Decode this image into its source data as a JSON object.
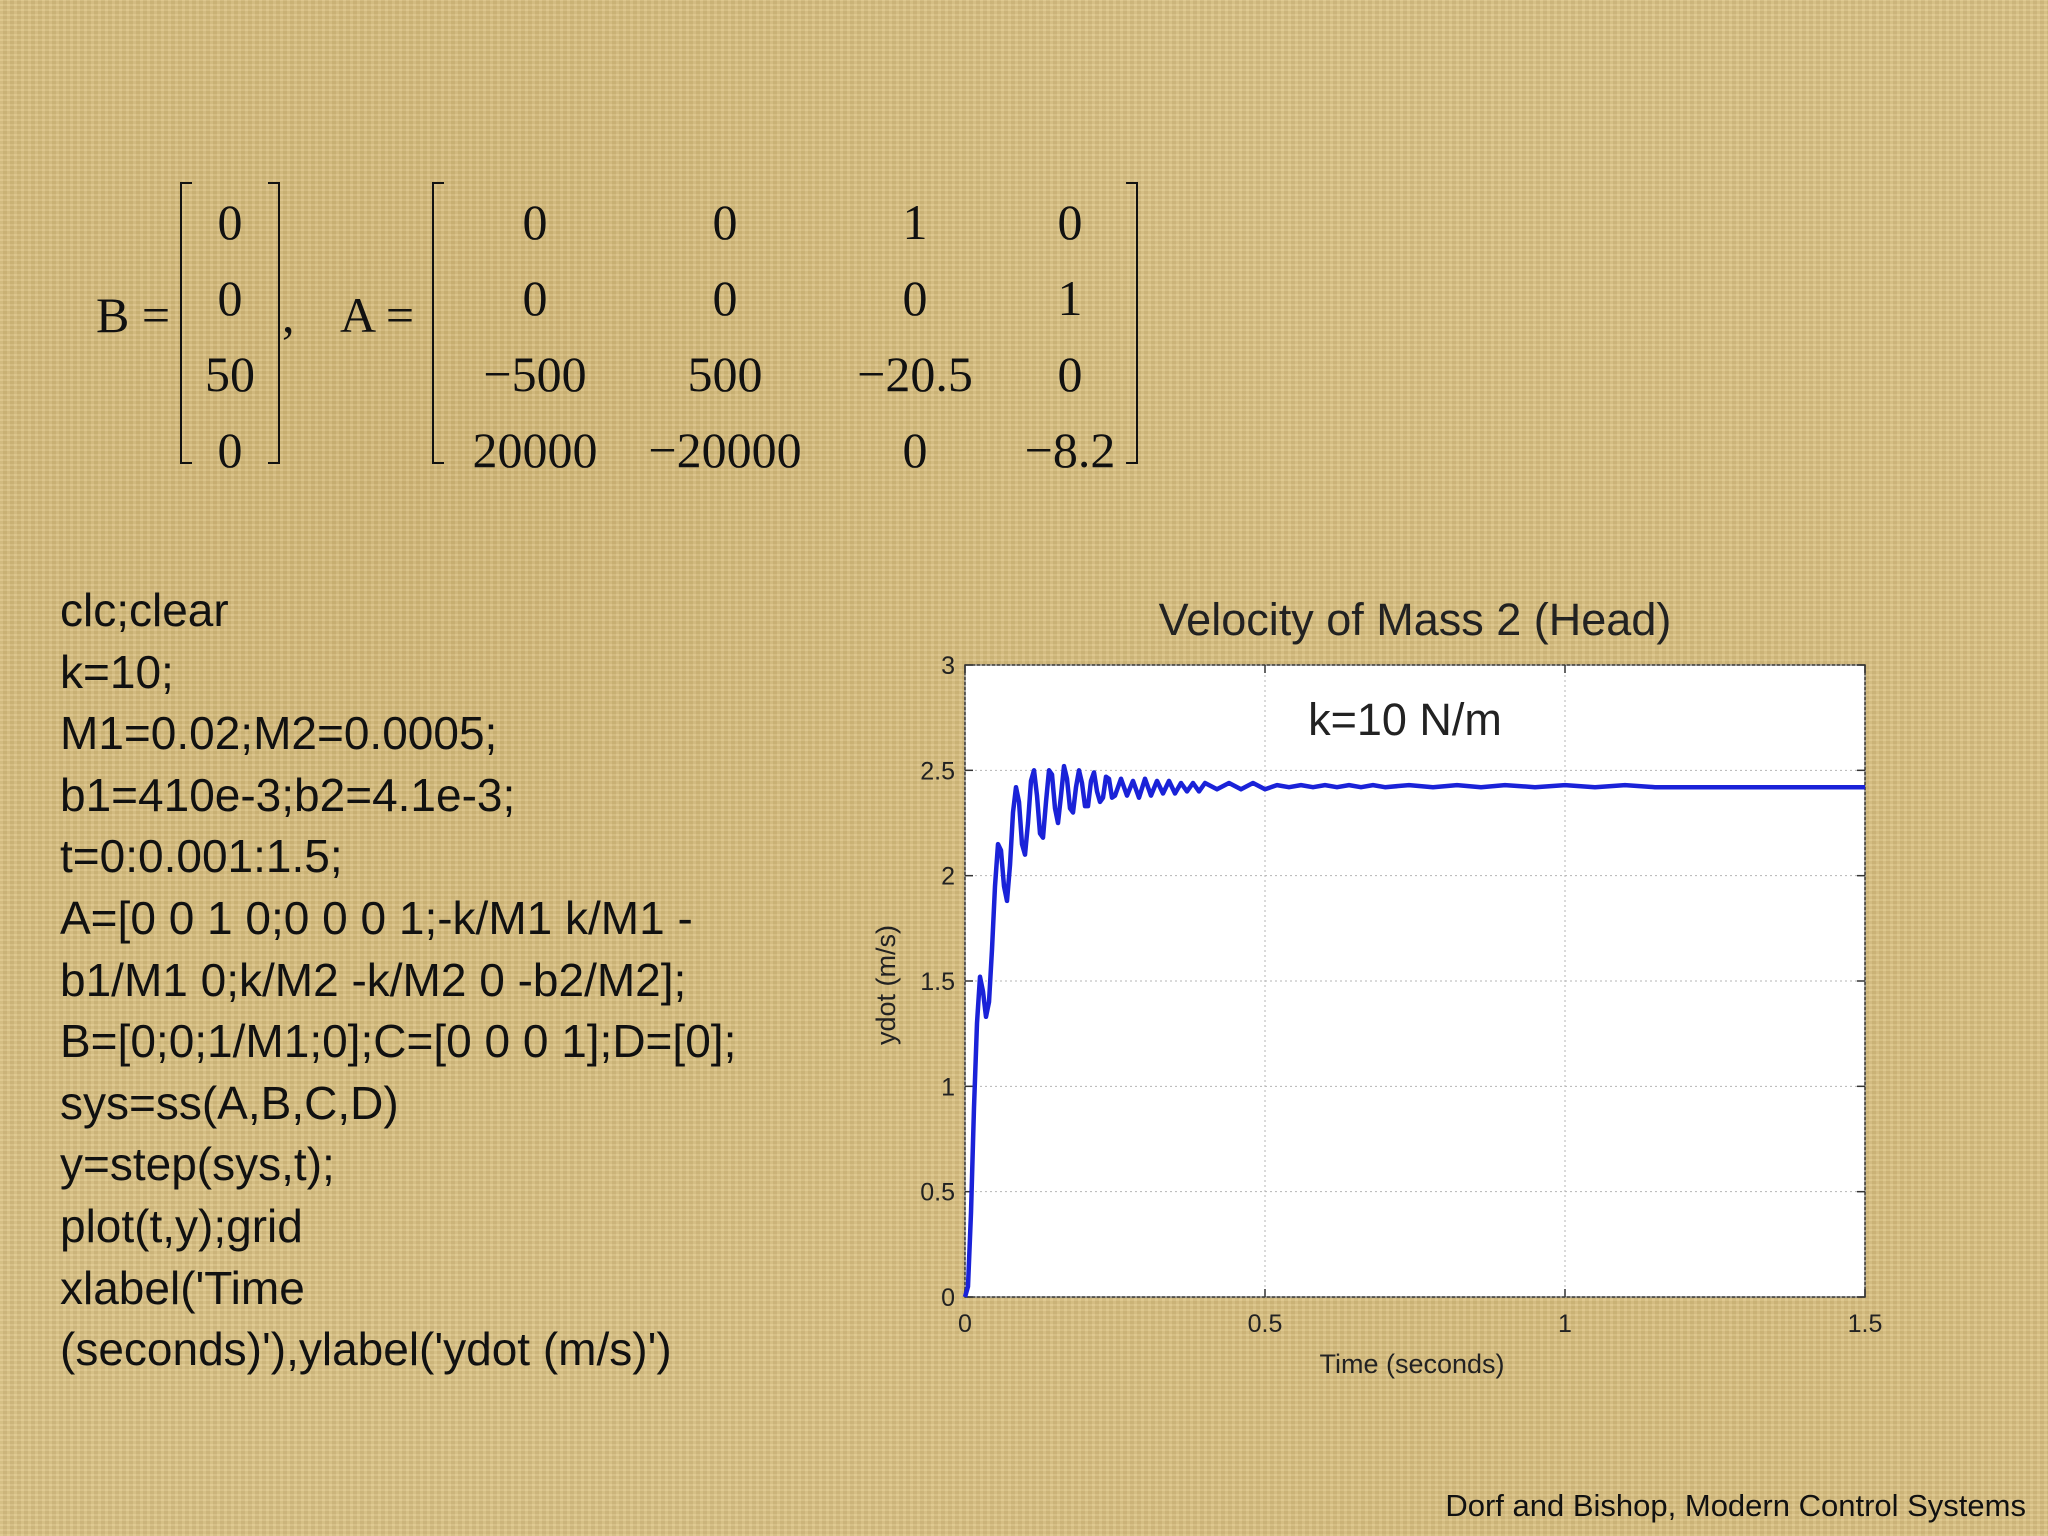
{
  "matrices": {
    "B_label": "B =",
    "A_label": "A =",
    "comma": ",",
    "B": [
      "0",
      "0",
      "50",
      "0"
    ],
    "A": [
      [
        "0",
        "0",
        "1",
        "0"
      ],
      [
        "0",
        "0",
        "0",
        "1"
      ],
      [
        "−500",
        "500",
        "−20.5",
        "0"
      ],
      [
        "20000",
        "−20000",
        "0",
        "−8.2"
      ]
    ]
  },
  "code": [
    "clc;clear",
    "k=10;",
    "M1=0.02;M2=0.0005;",
    "b1=410e-3;b2=4.1e-3;",
    "t=0:0.001:1.5;",
    "A=[0 0 1 0;0 0 0 1;-k/M1 k/M1 -",
    "b1/M1 0;k/M2 -k/M2 0 -b2/M2];",
    "B=[0;0;1/M1;0];C=[0 0 0 1];D=[0];",
    "sys=ss(A,B,C,D)",
    "y=step(sys,t);",
    "plot(t,y);grid",
    "xlabel('Time",
    "(seconds)'),ylabel('ydot (m/s)')"
  ],
  "chart_data": {
    "type": "line",
    "title": "Velocity of Mass 2 (Head)",
    "annotation": "k=10 N/m",
    "xlabel": "Time (seconds)",
    "ylabel": "ydot (m/s)",
    "xlim": [
      0,
      1.5
    ],
    "ylim": [
      0,
      3
    ],
    "xticks": [
      "0",
      "0.5",
      "1",
      "1.5"
    ],
    "yticks": [
      "0",
      "0.5",
      "1",
      "1.5",
      "2",
      "2.5",
      "3"
    ],
    "grid": true,
    "series_color": "#1a22d8",
    "x": [
      0,
      0.005,
      0.01,
      0.015,
      0.02,
      0.025,
      0.03,
      0.035,
      0.04,
      0.045,
      0.05,
      0.055,
      0.06,
      0.065,
      0.07,
      0.075,
      0.08,
      0.085,
      0.09,
      0.095,
      0.1,
      0.105,
      0.11,
      0.115,
      0.12,
      0.125,
      0.13,
      0.135,
      0.14,
      0.145,
      0.15,
      0.155,
      0.16,
      0.165,
      0.17,
      0.175,
      0.18,
      0.185,
      0.19,
      0.195,
      0.2,
      0.205,
      0.21,
      0.215,
      0.22,
      0.225,
      0.23,
      0.235,
      0.24,
      0.245,
      0.25,
      0.26,
      0.27,
      0.28,
      0.29,
      0.3,
      0.31,
      0.32,
      0.33,
      0.34,
      0.35,
      0.36,
      0.37,
      0.38,
      0.39,
      0.4,
      0.42,
      0.44,
      0.46,
      0.48,
      0.5,
      0.52,
      0.54,
      0.56,
      0.58,
      0.6,
      0.62,
      0.64,
      0.66,
      0.68,
      0.7,
      0.74,
      0.78,
      0.82,
      0.86,
      0.9,
      0.95,
      1.0,
      1.05,
      1.1,
      1.15,
      1.2,
      1.25,
      1.3,
      1.35,
      1.4,
      1.45,
      1.5
    ],
    "values": [
      0,
      0.05,
      0.4,
      0.9,
      1.3,
      1.52,
      1.45,
      1.33,
      1.4,
      1.65,
      1.95,
      2.15,
      2.12,
      1.95,
      1.88,
      2.05,
      2.3,
      2.42,
      2.35,
      2.15,
      2.1,
      2.25,
      2.45,
      2.5,
      2.38,
      2.2,
      2.18,
      2.35,
      2.5,
      2.48,
      2.32,
      2.25,
      2.38,
      2.52,
      2.46,
      2.32,
      2.3,
      2.42,
      2.5,
      2.44,
      2.33,
      2.33,
      2.45,
      2.49,
      2.4,
      2.35,
      2.37,
      2.47,
      2.46,
      2.37,
      2.38,
      2.46,
      2.38,
      2.45,
      2.37,
      2.46,
      2.38,
      2.45,
      2.39,
      2.45,
      2.39,
      2.44,
      2.4,
      2.44,
      2.4,
      2.44,
      2.41,
      2.44,
      2.41,
      2.44,
      2.41,
      2.43,
      2.42,
      2.43,
      2.42,
      2.43,
      2.42,
      2.43,
      2.42,
      2.43,
      2.42,
      2.43,
      2.42,
      2.43,
      2.42,
      2.43,
      2.42,
      2.43,
      2.42,
      2.43,
      2.42,
      2.42,
      2.42,
      2.42,
      2.42,
      2.42,
      2.42,
      2.42
    ]
  },
  "citation": "Dorf and Bishop, Modern Control Systems"
}
